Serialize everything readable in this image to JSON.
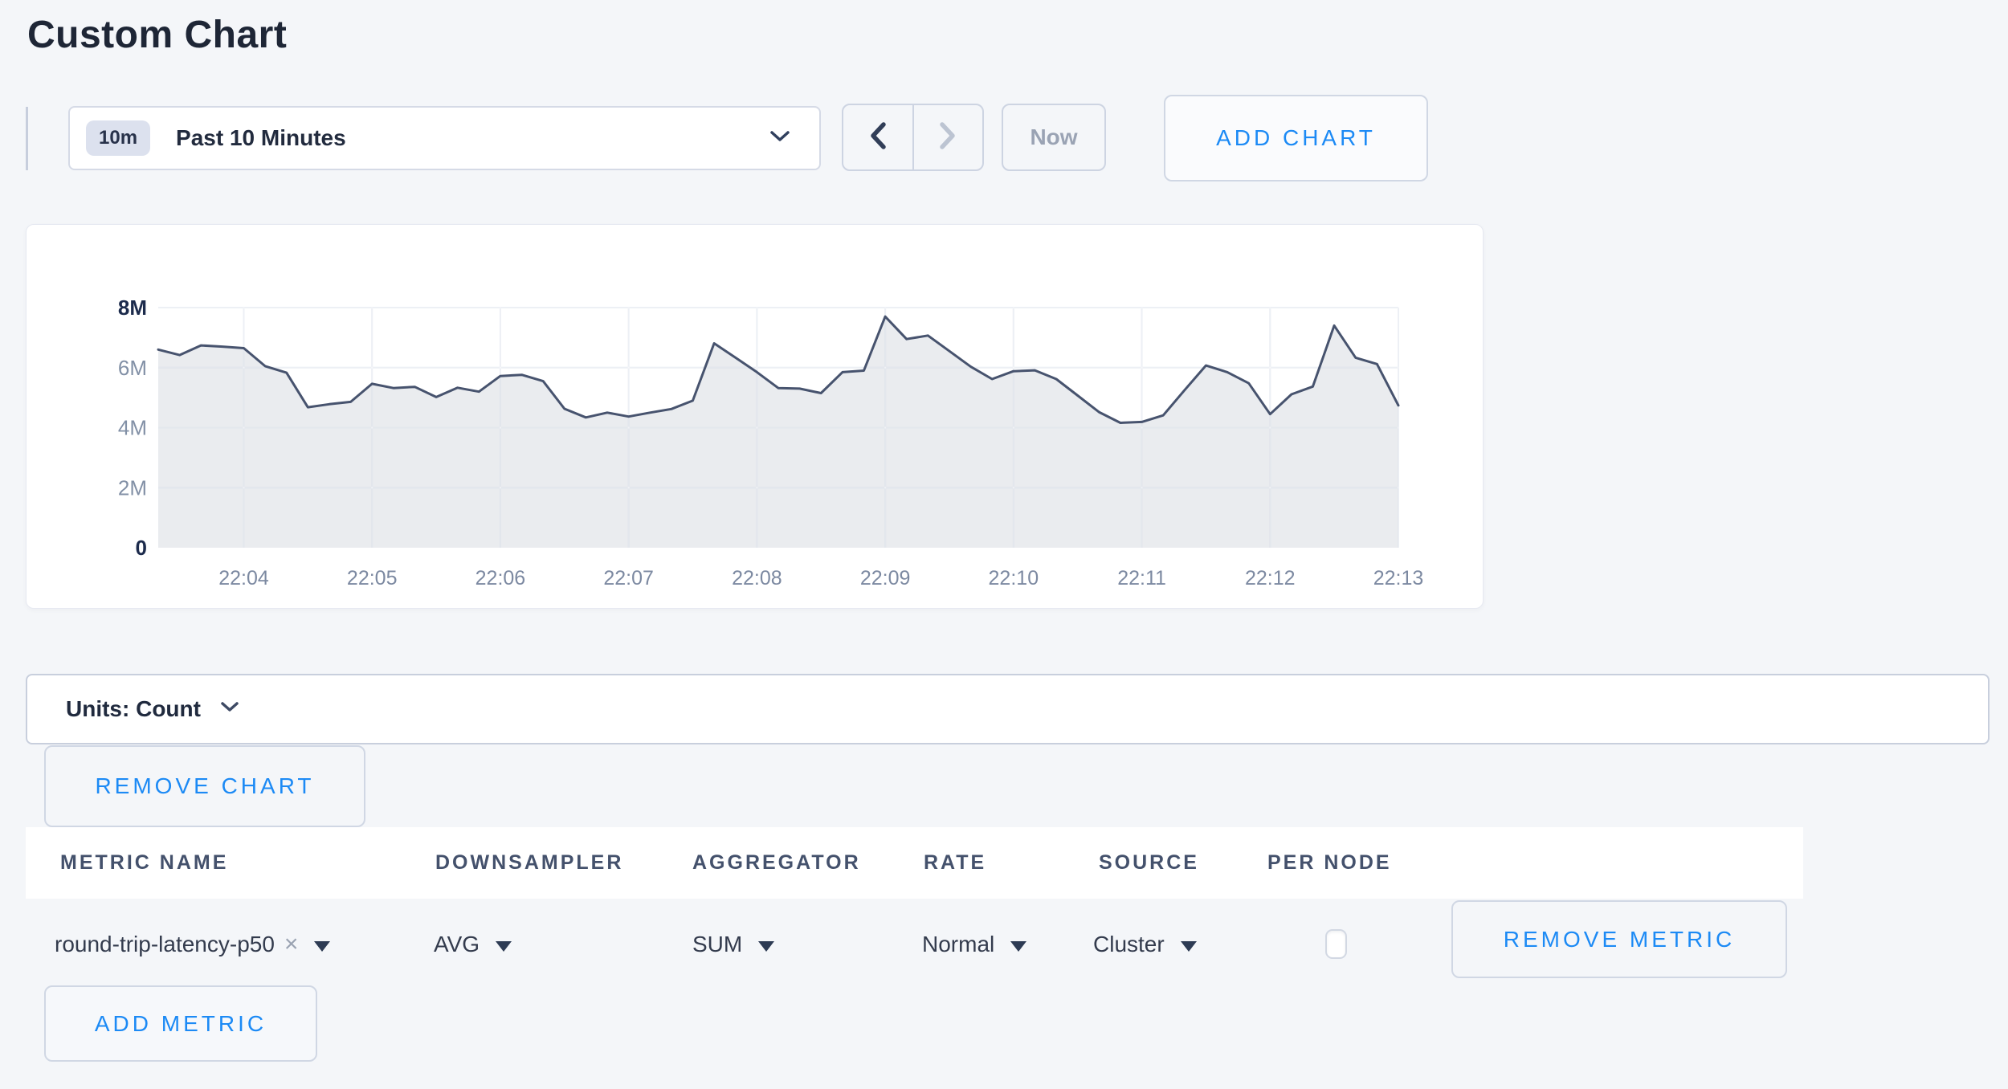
{
  "page": {
    "title": "Custom Chart",
    "background": "#f4f6f9",
    "accent_blue": "#1c8af5"
  },
  "toolbar": {
    "range_badge": "10m",
    "range_label": "Past 10 Minutes",
    "prev_icon": "chevron-left",
    "next_icon": "chevron-right",
    "now_label": "Now",
    "add_chart_label": "ADD CHART"
  },
  "units_bar": {
    "label": "Units: Count"
  },
  "chart_actions": {
    "remove_chart_label": "REMOVE CHART"
  },
  "chart_data": {
    "type": "area",
    "title": "",
    "unit": "Count",
    "ylim": [
      0,
      8000000
    ],
    "y_tick_values_millions": [
      0,
      2,
      4,
      6,
      8
    ],
    "y_tick_labels": [
      "0",
      "2M",
      "4M",
      "6M",
      "8M"
    ],
    "x_tick_labels": [
      "22:04",
      "22:05",
      "22:06",
      "22:07",
      "22:08",
      "22:09",
      "22:10",
      "22:11",
      "22:12",
      "22:13"
    ],
    "x_start": "22:03:20",
    "x_interval_seconds": 10,
    "x_tick_first_index": 4,
    "x_tick_step": 6,
    "grid": true,
    "legend_position": "none",
    "line_color": "#47536e",
    "fill_color": "rgba(71,88,114,0.115)",
    "grid_color": "#dfe3ed",
    "axis_label_color": "#8290a6",
    "axis_label_strong_color": "#1c2b4c",
    "series": [
      {
        "name": "round-trip-latency-p50",
        "values_millions": [
          6.6,
          6.42,
          6.74,
          6.7,
          6.65,
          6.05,
          5.83,
          4.68,
          4.78,
          4.86,
          5.46,
          5.32,
          5.36,
          5.02,
          5.33,
          5.2,
          5.72,
          5.76,
          5.55,
          4.63,
          4.34,
          4.5,
          4.37,
          4.5,
          4.62,
          4.9,
          6.81,
          6.33,
          5.85,
          5.32,
          5.3,
          5.15,
          5.85,
          5.9,
          7.7,
          6.95,
          7.07,
          6.55,
          6.03,
          5.62,
          5.88,
          5.91,
          5.62,
          5.07,
          4.52,
          4.16,
          4.19,
          4.41,
          5.25,
          6.07,
          5.85,
          5.48,
          4.45,
          5.11,
          5.37,
          7.4,
          6.33,
          6.12,
          4.74
        ]
      }
    ]
  },
  "metrics_table": {
    "headers": [
      "METRIC NAME",
      "DOWNSAMPLER",
      "AGGREGATOR",
      "RATE",
      "SOURCE",
      "PER NODE"
    ],
    "rows": [
      {
        "metric_name": "round-trip-latency-p50",
        "remove_tag_icon": "×",
        "downsampler": "AVG",
        "aggregator": "SUM",
        "rate": "Normal",
        "source": "Cluster",
        "per_node_checked": false,
        "remove_label": "REMOVE METRIC"
      }
    ],
    "add_metric_label": "ADD METRIC"
  }
}
